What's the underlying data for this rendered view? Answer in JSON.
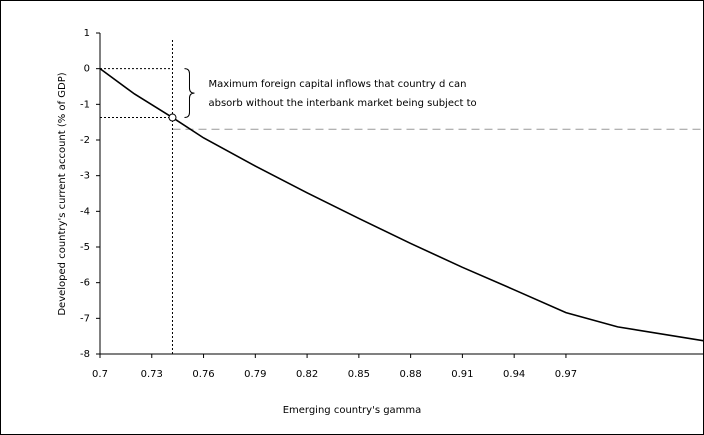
{
  "chart_data": {
    "type": "line",
    "xlabel": "Emerging country's gamma",
    "ylabel": "Developed country's current account (% of GDP)",
    "annotation": [
      "Maximum foreign capital inflows that country d can",
      "absorb without the interbank market being subject to"
    ],
    "x": [
      0.7,
      0.72,
      0.742,
      0.76,
      0.79,
      0.82,
      0.85,
      0.88,
      0.91,
      0.94,
      0.97,
      1.0,
      1.05
    ],
    "series": [
      {
        "color": "#000000",
        "values": [
          0,
          -0.71,
          -1.37,
          -1.94,
          -2.73,
          -3.48,
          -4.2,
          -4.9,
          -5.57,
          -6.2,
          -6.84,
          -7.24,
          -7.63
        ]
      }
    ],
    "marker": {
      "x": 0.742,
      "y": -1.37
    },
    "bracket_top": 0,
    "reference_y": -1.7,
    "reference_color": "#999999",
    "xlim": [
      0.7,
      1.05
    ],
    "ylim": [
      -8,
      1
    ],
    "xticks": [
      0.7,
      0.73,
      0.76,
      0.79,
      0.82,
      0.85,
      0.88,
      0.91,
      0.94,
      0.97
    ],
    "yticks": [
      -8,
      -7,
      -6,
      -5,
      -4,
      -3,
      -2,
      -1,
      0,
      1
    ]
  }
}
